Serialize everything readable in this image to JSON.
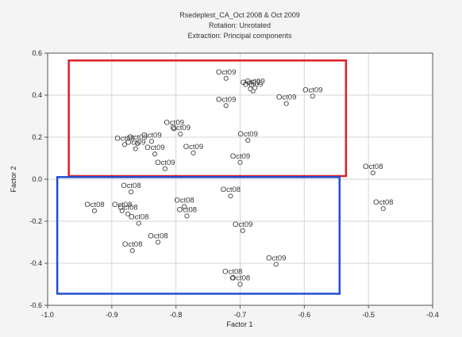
{
  "chart_data": {
    "type": "scatter",
    "title": [
      "Rsedeplest_CA_Oct 2008 & Oct 2009",
      "Rotation: Unrotated",
      "Extraction: Principal components"
    ],
    "xlabel": "Factor 1",
    "ylabel": "Factor 2",
    "xlim": [
      -1.0,
      -0.4
    ],
    "ylim": [
      -0.6,
      0.6
    ],
    "x_ticks": [
      "-1.0",
      "-0.9",
      "-0.8",
      "-0.7",
      "-0.6",
      "-0.5",
      "-0.4"
    ],
    "y_ticks": [
      "0.6",
      "0.4",
      "0.2",
      "0.0",
      "-0.2",
      "-0.4",
      "-0.6"
    ],
    "grid": true,
    "marker": "open-circle",
    "colors": {
      "background": "#f4f4f4",
      "plot_bg": "#ffffff",
      "grid": "#d6d6d6",
      "points": "#555555",
      "box_oct09": "#dd1f26",
      "box_oct08": "#1f4fd0"
    },
    "highlight_boxes": [
      {
        "group": "Oct09",
        "color": "#dd1f26",
        "x_range": [
          -0.967,
          -0.535
        ],
        "y_range": [
          0.015,
          0.565
        ]
      },
      {
        "group": "Oct08",
        "color": "#1f4fd0",
        "x_range": [
          -0.985,
          -0.545
        ],
        "y_range": [
          -0.545,
          0.01
        ]
      }
    ],
    "points": [
      {
        "x": -0.722,
        "y": 0.48,
        "label": "Oct09"
      },
      {
        "x": -0.68,
        "y": 0.42,
        "label": "Oct09"
      },
      {
        "x": -0.684,
        "y": 0.43,
        "label": "Oct09"
      },
      {
        "x": -0.677,
        "y": 0.435,
        "label": "Oct09"
      },
      {
        "x": -0.587,
        "y": 0.395,
        "label": "Oct09"
      },
      {
        "x": -0.628,
        "y": 0.36,
        "label": "Oct09"
      },
      {
        "x": -0.722,
        "y": 0.35,
        "label": "Oct09"
      },
      {
        "x": -0.803,
        "y": 0.24,
        "label": "Oct09"
      },
      {
        "x": -0.793,
        "y": 0.215,
        "label": "Oct09"
      },
      {
        "x": -0.838,
        "y": 0.18,
        "label": "Oct09"
      },
      {
        "x": -0.86,
        "y": 0.17,
        "label": "Oct09"
      },
      {
        "x": -0.88,
        "y": 0.165,
        "label": "Oct09"
      },
      {
        "x": -0.863,
        "y": 0.145,
        "label": "Oct09"
      },
      {
        "x": -0.833,
        "y": 0.12,
        "label": "Oct09"
      },
      {
        "x": -0.817,
        "y": 0.05,
        "label": "Oct09"
      },
      {
        "x": -0.773,
        "y": 0.125,
        "label": "Oct09"
      },
      {
        "x": -0.688,
        "y": 0.185,
        "label": "Oct09"
      },
      {
        "x": -0.7,
        "y": 0.08,
        "label": "Oct09"
      },
      {
        "x": -0.493,
        "y": 0.03,
        "label": "Oct08"
      },
      {
        "x": -0.477,
        "y": -0.14,
        "label": "Oct08"
      },
      {
        "x": -0.87,
        "y": -0.06,
        "label": "Oct08"
      },
      {
        "x": -0.927,
        "y": -0.15,
        "label": "Oct08"
      },
      {
        "x": -0.884,
        "y": -0.15,
        "label": "Oct08"
      },
      {
        "x": -0.875,
        "y": -0.165,
        "label": "Oct08"
      },
      {
        "x": -0.858,
        "y": -0.21,
        "label": "Oct08"
      },
      {
        "x": -0.787,
        "y": -0.13,
        "label": "Oct08"
      },
      {
        "x": -0.783,
        "y": -0.175,
        "label": "Oct08"
      },
      {
        "x": -0.715,
        "y": -0.08,
        "label": "Oct08"
      },
      {
        "x": -0.696,
        "y": -0.245,
        "label": "Oct09"
      },
      {
        "x": -0.828,
        "y": -0.3,
        "label": "Oct08"
      },
      {
        "x": -0.868,
        "y": -0.34,
        "label": "Oct08"
      },
      {
        "x": -0.644,
        "y": -0.405,
        "label": "Oct09"
      },
      {
        "x": -0.712,
        "y": -0.47,
        "label": "Oct08"
      },
      {
        "x": -0.7,
        "y": -0.5,
        "label": "Oct08"
      }
    ]
  }
}
